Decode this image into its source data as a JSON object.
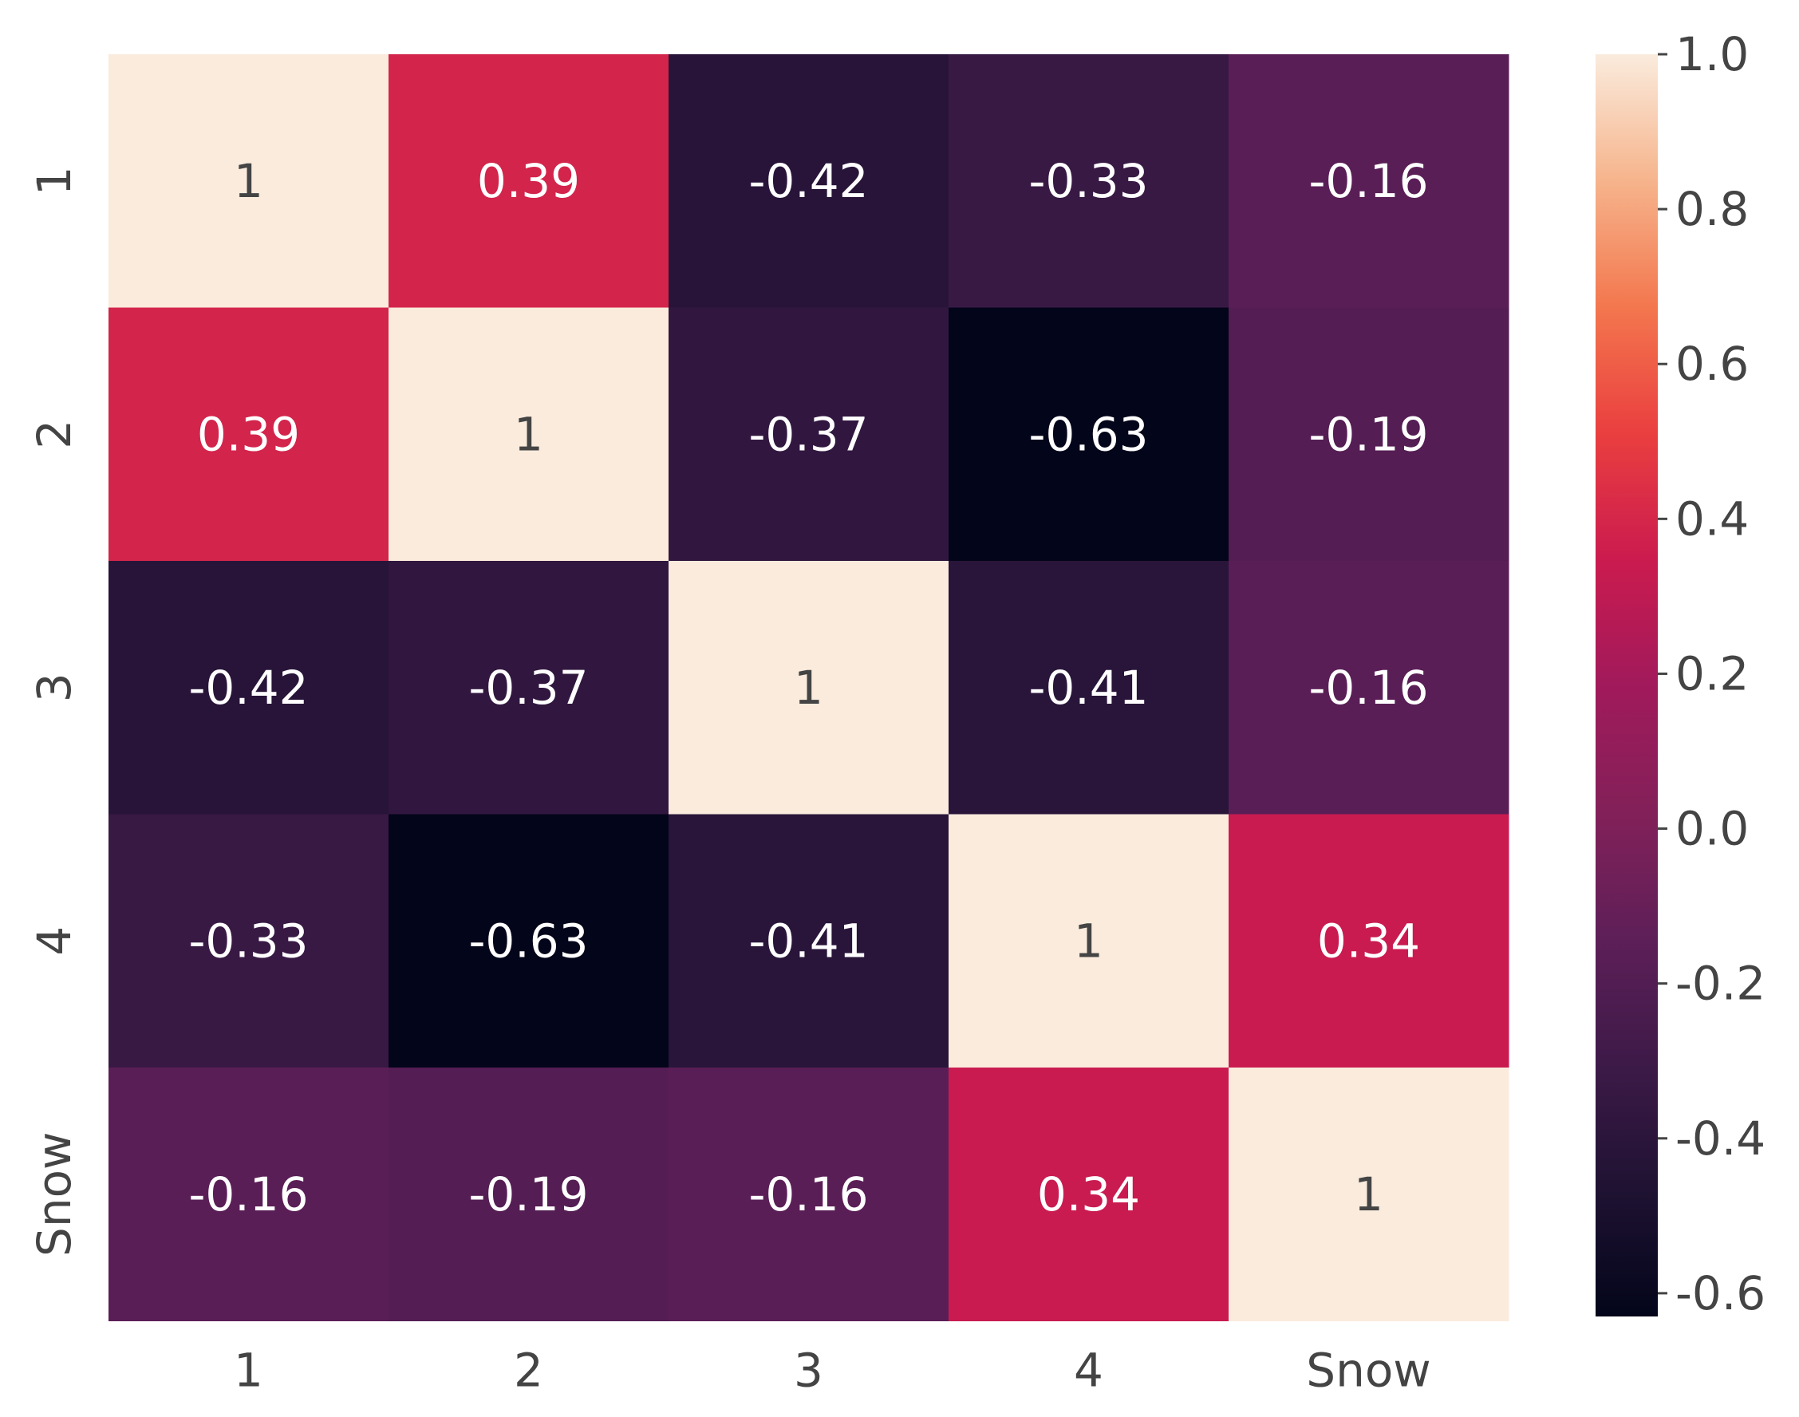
{
  "chart_data": {
    "type": "heatmap",
    "title": "",
    "xlabel": "",
    "ylabel": "",
    "x_categories": [
      "1",
      "2",
      "3",
      "4",
      "Snow"
    ],
    "y_categories": [
      "1",
      "2",
      "3",
      "4",
      "Snow"
    ],
    "matrix": [
      [
        1,
        0.39,
        -0.42,
        -0.33,
        -0.16
      ],
      [
        0.39,
        1,
        -0.37,
        -0.63,
        -0.19
      ],
      [
        -0.42,
        -0.37,
        1,
        -0.41,
        -0.16
      ],
      [
        -0.33,
        -0.63,
        -0.41,
        1,
        0.34
      ],
      [
        -0.16,
        -0.19,
        -0.16,
        0.34,
        1
      ]
    ],
    "annotations": [
      [
        "1",
        "0.39",
        "-0.42",
        "-0.33",
        "-0.16"
      ],
      [
        "0.39",
        "1",
        "-0.37",
        "-0.63",
        "-0.19"
      ],
      [
        "-0.42",
        "-0.37",
        "1",
        "-0.41",
        "-0.16"
      ],
      [
        "-0.33",
        "-0.63",
        "-0.41",
        "1",
        "0.34"
      ],
      [
        "-0.16",
        "-0.19",
        "-0.16",
        "0.34",
        "1"
      ]
    ],
    "colorbar": {
      "vmin": -0.63,
      "vmax": 1.0,
      "ticks": [
        1.0,
        0.8,
        0.6,
        0.4,
        0.2,
        0.0,
        -0.2,
        -0.4,
        -0.6
      ],
      "tick_labels": [
        "1.0",
        "0.8",
        "0.6",
        "0.4",
        "0.2",
        "0.0",
        "-0.2",
        "-0.4",
        "-0.6"
      ]
    },
    "colormap": "rocket",
    "colormap_stops": [
      {
        "t": 0.0,
        "color": "#03051a"
      },
      {
        "t": 0.1,
        "color": "#1f1232"
      },
      {
        "t": 0.2,
        "color": "#3d1a48"
      },
      {
        "t": 0.3,
        "color": "#5e1f58"
      },
      {
        "t": 0.4,
        "color": "#832059"
      },
      {
        "t": 0.5,
        "color": "#a11a5b"
      },
      {
        "t": 0.6,
        "color": "#cb1b4f"
      },
      {
        "t": 0.7,
        "color": "#ea3f3f"
      },
      {
        "t": 0.8,
        "color": "#f3774e"
      },
      {
        "t": 0.9,
        "color": "#f6b48c"
      },
      {
        "t": 1.0,
        "color": "#faebdd"
      }
    ],
    "text_colors": {
      "dark": "#444444",
      "light": "#ffffff"
    }
  }
}
